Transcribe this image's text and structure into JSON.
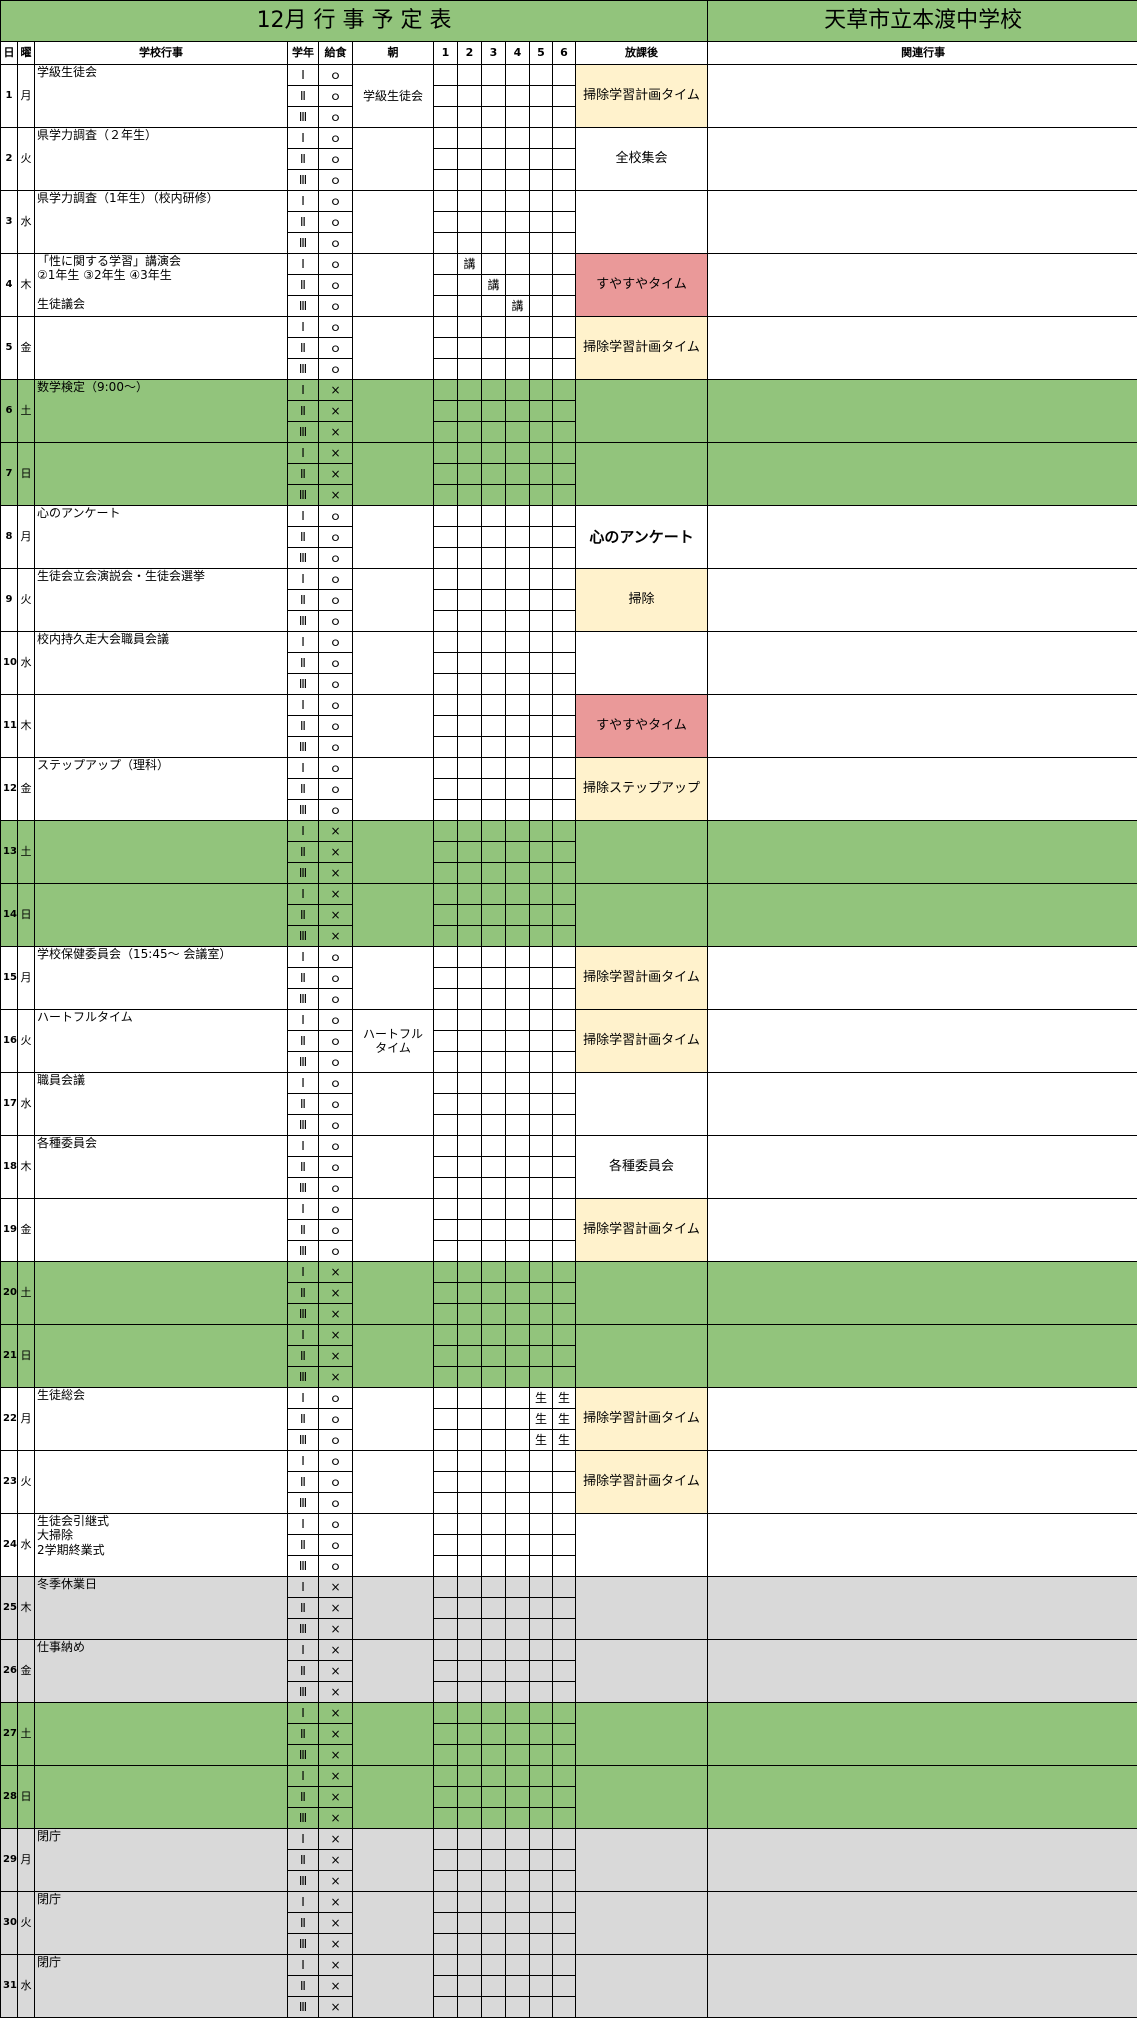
{
  "header": {
    "title": "12月 行 事 予 定 表",
    "school": "天草市立本渡中学校"
  },
  "columns": [
    "日",
    "曜",
    "学校行事",
    "学年",
    "給食",
    "朝",
    "1",
    "2",
    "3",
    "4",
    "5",
    "6",
    "放課後",
    "関連行事"
  ],
  "grades": [
    "Ⅰ",
    "Ⅱ",
    "Ⅲ"
  ],
  "days": [
    {
      "day": 1,
      "dow": "月",
      "event": "学級生徒会",
      "lunch": [
        "ｏ",
        "ｏ",
        "ｏ"
      ],
      "morning": "学級生徒会",
      "after": "掃除学習計画タイム",
      "after_bg": "#fff2cc"
    },
    {
      "day": 2,
      "dow": "火",
      "event": "県学力調査（２年生）",
      "lunch": [
        "ｏ",
        "ｏ",
        "ｏ"
      ],
      "after": "全校集会"
    },
    {
      "day": 3,
      "dow": "水",
      "event": "県学力調査（1年生）（校内研修）",
      "lunch": [
        "ｏ",
        "ｏ",
        "ｏ"
      ]
    },
    {
      "day": 4,
      "dow": "木",
      "event": "「性に関する学習」講演会\n②1年生  ③2年生  ④3年生\n\n生徒議会",
      "lunch": [
        "ｏ",
        "ｏ",
        "ｏ"
      ],
      "periods": [
        [
          null,
          "講",
          null,
          null,
          null,
          null
        ],
        [
          null,
          null,
          "講",
          null,
          null,
          null
        ],
        [
          null,
          null,
          null,
          "講",
          null,
          null
        ]
      ],
      "after": "すやすやタイム",
      "after_bg": "#ea9999"
    },
    {
      "day": 5,
      "dow": "金",
      "lunch": [
        "ｏ",
        "ｏ",
        "ｏ"
      ],
      "after": "掃除学習計画タイム",
      "after_bg": "#fff2cc"
    },
    {
      "day": 6,
      "dow": "土",
      "event": "数学検定（9:00～）",
      "lunch": [
        "×",
        "×",
        "×"
      ],
      "bg": "#92c47c"
    },
    {
      "day": 7,
      "dow": "日",
      "lunch": [
        "×",
        "×",
        "×"
      ],
      "bg": "#92c47c"
    },
    {
      "day": 8,
      "dow": "月",
      "event": "心のアンケート",
      "lunch": [
        "ｏ",
        "ｏ",
        "ｏ"
      ],
      "after": "心のアンケート",
      "after_bold": true
    },
    {
      "day": 9,
      "dow": "火",
      "event": "生徒会立会演説会・生徒会選挙",
      "lunch": [
        "ｏ",
        "ｏ",
        "ｏ"
      ],
      "after": "掃除",
      "after_bg": "#fff2cc"
    },
    {
      "day": 10,
      "dow": "水",
      "event": "校内持久走大会職員会議",
      "lunch": [
        "ｏ",
        "ｏ",
        "ｏ"
      ]
    },
    {
      "day": 11,
      "dow": "木",
      "lunch": [
        "ｏ",
        "ｏ",
        "ｏ"
      ],
      "after": "すやすやタイム",
      "after_bg": "#ea9999"
    },
    {
      "day": 12,
      "dow": "金",
      "event": "ステップアップ（理科）",
      "lunch": [
        "ｏ",
        "ｏ",
        "ｏ"
      ],
      "after": "掃除ステップアップ",
      "after_bg": "#fff2cc"
    },
    {
      "day": 13,
      "dow": "土",
      "lunch": [
        "×",
        "×",
        "×"
      ],
      "bg": "#92c47c"
    },
    {
      "day": 14,
      "dow": "日",
      "lunch": [
        "×",
        "×",
        "×"
      ],
      "bg": "#92c47c"
    },
    {
      "day": 15,
      "dow": "月",
      "event": "学校保健委員会（15:45～ 会議室）",
      "lunch": [
        "ｏ",
        "ｏ",
        "ｏ"
      ],
      "after": "掃除学習計画タイム",
      "after_bg": "#fff2cc"
    },
    {
      "day": 16,
      "dow": "火",
      "event": "ハートフルタイム",
      "lunch": [
        "ｏ",
        "ｏ",
        "ｏ"
      ],
      "morning": "ハートフル\nタイム",
      "after": "掃除学習計画タイム",
      "after_bg": "#fff2cc"
    },
    {
      "day": 17,
      "dow": "水",
      "event": "職員会議",
      "lunch": [
        "ｏ",
        "ｏ",
        "ｏ"
      ]
    },
    {
      "day": 18,
      "dow": "木",
      "event": "各種委員会",
      "lunch": [
        "ｏ",
        "ｏ",
        "ｏ"
      ],
      "after": "各種委員会"
    },
    {
      "day": 19,
      "dow": "金",
      "lunch": [
        "ｏ",
        "ｏ",
        "ｏ"
      ],
      "after": "掃除学習計画タイム",
      "after_bg": "#fff2cc"
    },
    {
      "day": 20,
      "dow": "土",
      "lunch": [
        "×",
        "×",
        "×"
      ],
      "bg": "#92c47c"
    },
    {
      "day": 21,
      "dow": "日",
      "lunch": [
        "×",
        "×",
        "×"
      ],
      "bg": "#92c47c"
    },
    {
      "day": 22,
      "dow": "月",
      "event": "生徒総会",
      "lunch": [
        "ｏ",
        "ｏ",
        "ｏ"
      ],
      "periods": [
        [
          null,
          null,
          null,
          null,
          "生",
          "生"
        ],
        [
          null,
          null,
          null,
          null,
          "生",
          "生"
        ],
        [
          null,
          null,
          null,
          null,
          "生",
          "生"
        ]
      ],
      "after": "掃除学習計画タイム",
      "after_bg": "#fff2cc"
    },
    {
      "day": 23,
      "dow": "火",
      "lunch": [
        "ｏ",
        "ｏ",
        "ｏ"
      ],
      "after": "掃除学習計画タイム",
      "after_bg": "#fff2cc"
    },
    {
      "day": 24,
      "dow": "水",
      "event": "生徒会引継式\n大掃除\n2学期終業式",
      "lunch": [
        "ｏ",
        "ｏ",
        "ｏ"
      ]
    },
    {
      "day": 25,
      "dow": "木",
      "event": "冬季休業日",
      "lunch": [
        "×",
        "×",
        "×"
      ],
      "bg": "#d9d9d9"
    },
    {
      "day": 26,
      "dow": "金",
      "event": "仕事納め",
      "lunch": [
        "×",
        "×",
        "×"
      ],
      "bg": "#d9d9d9"
    },
    {
      "day": 27,
      "dow": "土",
      "lunch": [
        "×",
        "×",
        "×"
      ],
      "bg": "#92c47c"
    },
    {
      "day": 28,
      "dow": "日",
      "lunch": [
        "×",
        "×",
        "×"
      ],
      "bg": "#92c47c"
    },
    {
      "day": 29,
      "dow": "月",
      "event": "閉庁",
      "lunch": [
        "×",
        "×",
        "×"
      ],
      "bg": "#d9d9d9"
    },
    {
      "day": 30,
      "dow": "火",
      "event": "閉庁",
      "lunch": [
        "×",
        "×",
        "×"
      ],
      "bg": "#d9d9d9"
    },
    {
      "day": 31,
      "dow": "水",
      "event": "閉庁",
      "lunch": [
        "×",
        "×",
        "×"
      ],
      "bg": "#d9d9d9"
    }
  ]
}
